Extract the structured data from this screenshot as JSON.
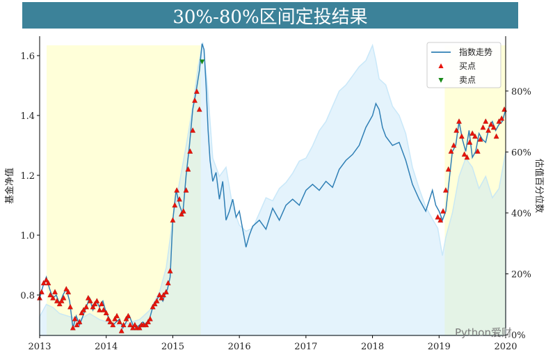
{
  "title": "30%-80%区间定投结果",
  "watermark": "Python爱财",
  "chart_data": {
    "type": "line",
    "title": "30%-80%区间定投结果",
    "ylabel_left": "基金净值",
    "ylabel_right": "估值百分位数",
    "xlim": [
      2013.0,
      2020.0
    ],
    "ylim_left": [
      0.665,
      1.665
    ],
    "ylim_right": [
      -0.2,
      98
    ],
    "x_ticks": [
      2013,
      2014,
      2015,
      2016,
      2017,
      2018,
      2019,
      2020
    ],
    "x_tick_labels": [
      "2013",
      "2014",
      "2015",
      "2016",
      "2017",
      "2018",
      "2019",
      "2020"
    ],
    "y_left_ticks": [
      0.8,
      1.0,
      1.2,
      1.4,
      1.6
    ],
    "y_left_tick_labels": [
      "0.8",
      "1.0",
      "1.2",
      "1.4",
      "1.6"
    ],
    "y_right_ticks": [
      0,
      20,
      40,
      60,
      80
    ],
    "y_right_tick_labels": [
      "0%",
      "20%",
      "40%",
      "60%",
      "80%"
    ],
    "legend": {
      "position": "top-right",
      "entries": [
        {
          "label": "指数走势",
          "marker": "line",
          "color": "#2f7fb5"
        },
        {
          "label": "买点",
          "marker": "triangle-up",
          "color": "#e8140c"
        },
        {
          "label": "卖点",
          "marker": "triangle-down",
          "color": "#1a8a1a"
        }
      ]
    },
    "invest_zones": [
      {
        "x_start": 2013.0,
        "x_end": 2015.42,
        "color": "#ffffd9"
      },
      {
        "x_start": 2018.98,
        "x_end": 2020.0,
        "color": "#ffffd9"
      }
    ],
    "valuation_percentile": {
      "color": "#bfe3f7",
      "x": [
        2013.0,
        2013.1,
        2013.2,
        2013.3,
        2013.45,
        2013.6,
        2013.75,
        2013.9,
        2014.05,
        2014.2,
        2014.35,
        2014.5,
        2014.65,
        2014.8,
        2014.9,
        2015.0,
        2015.1,
        2015.2,
        2015.3,
        2015.38,
        2015.45,
        2015.52,
        2015.6,
        2015.7,
        2015.8,
        2015.9,
        2016.0,
        2016.1,
        2016.2,
        2016.3,
        2016.4,
        2016.5,
        2016.6,
        2016.7,
        2016.8,
        2016.9,
        2017.0,
        2017.1,
        2017.2,
        2017.3,
        2017.4,
        2017.5,
        2017.6,
        2017.7,
        2017.8,
        2017.9,
        2018.0,
        2018.05,
        2018.1,
        2018.2,
        2018.3,
        2018.4,
        2018.5,
        2018.6,
        2018.7,
        2018.8,
        2018.9,
        2018.98,
        2019.05,
        2019.1,
        2019.2,
        2019.3,
        2019.4,
        2019.5,
        2019.6,
        2019.7,
        2019.8,
        2019.9,
        2020.0
      ],
      "y": [
        6,
        10,
        9,
        7,
        6,
        5,
        7,
        5,
        4,
        3,
        4,
        5,
        8,
        14,
        22,
        38,
        50,
        62,
        75,
        88,
        96,
        82,
        58,
        52,
        55,
        42,
        36,
        34,
        35,
        40,
        45,
        44,
        48,
        50,
        53,
        57,
        58,
        62,
        67,
        70,
        75,
        80,
        82,
        85,
        88,
        90,
        95,
        90,
        84,
        82,
        75,
        72,
        66,
        55,
        48,
        42,
        38,
        35,
        26,
        32,
        40,
        52,
        58,
        55,
        48,
        52,
        45,
        48,
        60
      ]
    },
    "series": [
      {
        "name": "指数走势",
        "color": "#2f7fb5",
        "x": [
          2013.0,
          2013.05,
          2013.1,
          2013.15,
          2013.2,
          2013.25,
          2013.3,
          2013.35,
          2013.4,
          2013.45,
          2013.5,
          2013.55,
          2013.6,
          2013.65,
          2013.7,
          2013.75,
          2013.8,
          2013.85,
          2013.9,
          2013.95,
          2014.0,
          2014.05,
          2014.1,
          2014.15,
          2014.2,
          2014.25,
          2014.3,
          2014.35,
          2014.4,
          2014.45,
          2014.5,
          2014.55,
          2014.6,
          2014.65,
          2014.7,
          2014.75,
          2014.8,
          2014.85,
          2014.88,
          2014.92,
          2014.96,
          2015.0,
          2015.05,
          2015.1,
          2015.15,
          2015.2,
          2015.25,
          2015.3,
          2015.35,
          2015.4,
          2015.44,
          2015.47,
          2015.5,
          2015.53,
          2015.56,
          2015.6,
          2015.65,
          2015.7,
          2015.75,
          2015.8,
          2015.85,
          2015.9,
          2015.95,
          2016.0,
          2016.05,
          2016.1,
          2016.15,
          2016.2,
          2016.3,
          2016.4,
          2016.5,
          2016.6,
          2016.7,
          2016.8,
          2016.9,
          2017.0,
          2017.1,
          2017.2,
          2017.3,
          2017.4,
          2017.5,
          2017.6,
          2017.7,
          2017.8,
          2017.9,
          2018.0,
          2018.05,
          2018.1,
          2018.15,
          2018.2,
          2018.3,
          2018.4,
          2018.5,
          2018.6,
          2018.7,
          2018.8,
          2018.9,
          2018.95,
          2019.0,
          2019.05,
          2019.1,
          2019.15,
          2019.2,
          2019.25,
          2019.3,
          2019.35,
          2019.4,
          2019.45,
          2019.5,
          2019.55,
          2019.6,
          2019.65,
          2019.7,
          2019.75,
          2019.8,
          2019.85,
          2019.9,
          2019.95,
          2020.0
        ],
        "y": [
          0.79,
          0.83,
          0.86,
          0.82,
          0.79,
          0.8,
          0.77,
          0.8,
          0.82,
          0.78,
          0.69,
          0.73,
          0.7,
          0.73,
          0.76,
          0.79,
          0.75,
          0.78,
          0.76,
          0.78,
          0.74,
          0.72,
          0.7,
          0.71,
          0.72,
          0.69,
          0.71,
          0.73,
          0.7,
          0.69,
          0.7,
          0.71,
          0.7,
          0.72,
          0.76,
          0.78,
          0.8,
          0.78,
          0.8,
          0.82,
          0.86,
          1.05,
          1.15,
          1.1,
          1.07,
          1.2,
          1.3,
          1.42,
          1.48,
          1.55,
          1.64,
          1.62,
          1.5,
          1.35,
          1.25,
          1.18,
          1.21,
          1.12,
          1.18,
          1.05,
          1.08,
          1.12,
          1.06,
          1.08,
          1.02,
          0.96,
          1.0,
          1.03,
          1.05,
          1.02,
          1.09,
          1.05,
          1.1,
          1.12,
          1.1,
          1.15,
          1.17,
          1.15,
          1.18,
          1.16,
          1.22,
          1.25,
          1.27,
          1.3,
          1.36,
          1.4,
          1.44,
          1.42,
          1.36,
          1.33,
          1.3,
          1.31,
          1.25,
          1.17,
          1.12,
          1.08,
          1.15,
          1.1,
          1.08,
          1.05,
          1.08,
          1.18,
          1.28,
          1.3,
          1.38,
          1.32,
          1.28,
          1.35,
          1.26,
          1.28,
          1.34,
          1.32,
          1.31,
          1.36,
          1.38,
          1.35,
          1.37,
          1.38,
          1.42
        ]
      }
    ],
    "buy_points": {
      "color": "#e8140c",
      "x": [
        2013.0,
        2013.03,
        2013.06,
        2013.1,
        2013.13,
        2013.16,
        2013.2,
        2013.23,
        2013.26,
        2013.3,
        2013.33,
        2013.36,
        2013.4,
        2013.43,
        2013.46,
        2013.5,
        2013.53,
        2013.56,
        2013.6,
        2013.63,
        2013.66,
        2013.7,
        2013.73,
        2013.76,
        2013.8,
        2013.83,
        2013.86,
        2013.9,
        2013.93,
        2013.96,
        2014.0,
        2014.03,
        2014.06,
        2014.1,
        2014.13,
        2014.16,
        2014.2,
        2014.23,
        2014.26,
        2014.3,
        2014.33,
        2014.36,
        2014.4,
        2014.43,
        2014.46,
        2014.5,
        2014.53,
        2014.56,
        2014.6,
        2014.63,
        2014.66,
        2014.7,
        2014.73,
        2014.76,
        2014.8,
        2014.83,
        2014.86,
        2014.9,
        2014.93,
        2014.96,
        2015.0,
        2015.03,
        2015.06,
        2015.1,
        2015.13,
        2015.16,
        2015.2,
        2015.23,
        2015.26,
        2015.3,
        2015.33,
        2015.36,
        2015.4,
        2018.98,
        2019.02,
        2019.06,
        2019.1,
        2019.14,
        2019.18,
        2019.22,
        2019.26,
        2019.3,
        2019.34,
        2019.38,
        2019.42,
        2019.46,
        2019.5,
        2019.54,
        2019.58,
        2019.62,
        2019.66,
        2019.7,
        2019.74,
        2019.78,
        2019.82,
        2019.86,
        2019.9,
        2019.94,
        2019.98
      ],
      "y": [
        0.79,
        0.81,
        0.84,
        0.85,
        0.84,
        0.8,
        0.79,
        0.81,
        0.78,
        0.77,
        0.78,
        0.79,
        0.82,
        0.81,
        0.76,
        0.69,
        0.72,
        0.7,
        0.71,
        0.74,
        0.75,
        0.76,
        0.79,
        0.78,
        0.76,
        0.77,
        0.78,
        0.75,
        0.77,
        0.75,
        0.74,
        0.72,
        0.71,
        0.7,
        0.72,
        0.73,
        0.71,
        0.68,
        0.7,
        0.72,
        0.73,
        0.7,
        0.69,
        0.7,
        0.69,
        0.69,
        0.7,
        0.7,
        0.7,
        0.71,
        0.72,
        0.76,
        0.77,
        0.78,
        0.8,
        0.79,
        0.8,
        0.81,
        0.84,
        0.88,
        1.05,
        1.1,
        1.15,
        1.12,
        1.07,
        1.08,
        1.15,
        1.22,
        1.28,
        1.35,
        1.45,
        1.48,
        1.42,
        1.06,
        1.05,
        1.08,
        1.15,
        1.22,
        1.28,
        1.3,
        1.35,
        1.38,
        1.33,
        1.27,
        1.26,
        1.31,
        1.34,
        1.33,
        1.28,
        1.32,
        1.36,
        1.38,
        1.35,
        1.37,
        1.36,
        1.33,
        1.38,
        1.39,
        1.42
      ]
    },
    "sell_points": {
      "color": "#1a8a1a",
      "x": [
        2015.44
      ],
      "y": [
        1.58
      ]
    }
  }
}
